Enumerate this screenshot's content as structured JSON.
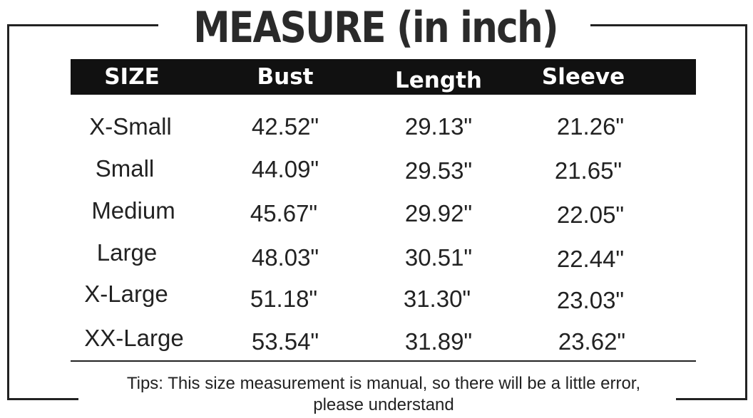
{
  "title": "MEASURE (in inch)",
  "table": {
    "headers": [
      "SIZE",
      "Bust",
      "Length",
      "Sleeve"
    ],
    "rows": [
      [
        "X-Small",
        "42.52\"",
        "29.13\"",
        "21.26\""
      ],
      [
        "Small",
        "44.09\"",
        "29.53\"",
        "21.65\""
      ],
      [
        "Medium",
        "45.67\"",
        "29.92\"",
        "22.05\""
      ],
      [
        "Large",
        "48.03\"",
        "30.51\"",
        "22.44\""
      ],
      [
        "X-Large",
        "51.18\"",
        "31.30\"",
        "23.03\""
      ],
      [
        "XX-Large",
        "53.54\"",
        "31.89\"",
        "23.62\""
      ]
    ]
  },
  "tips": {
    "line1": "Tips:  This size measurement is manual, so there will be a little error,",
    "line2": "please understand"
  },
  "colors": {
    "header_background": "#111111",
    "header_text": "#ffffff",
    "body_text": "#222222"
  }
}
